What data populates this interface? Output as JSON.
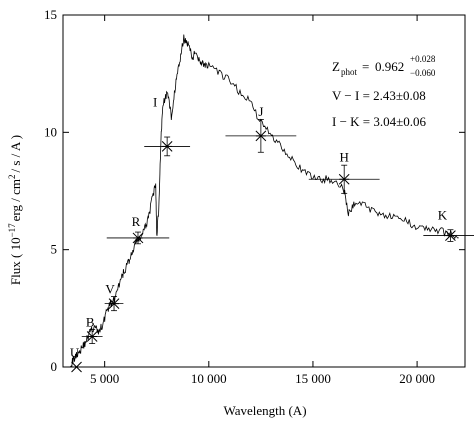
{
  "chart_data": {
    "type": "line",
    "xlabel": "Wavelength (A)",
    "ylabel_parts": {
      "pre": "Flux ( 10",
      "exp": "−17",
      "mid": "erg / cm",
      "exp2": "2",
      "post": "/ s / A )"
    },
    "xlim": [
      3000,
      22300
    ],
    "ylim": [
      0,
      15
    ],
    "x_ticks": [
      {
        "value": 5000,
        "label": "5 000"
      },
      {
        "value": 10000,
        "label": "10 000"
      },
      {
        "value": 15000,
        "label": "15 000"
      },
      {
        "value": 20000,
        "label": "20 000"
      }
    ],
    "y_ticks": [
      {
        "value": 0,
        "label": "0"
      },
      {
        "value": 5,
        "label": "5"
      },
      {
        "value": 10,
        "label": "10"
      },
      {
        "value": 15,
        "label": "15"
      }
    ],
    "grid": false,
    "annotations": {
      "zphot_label": "Z",
      "zphot_sub": "phot",
      "zphot_eq": "=",
      "zphot_value": "0.962",
      "zphot_plus": "+0.028",
      "zphot_minus": "−0.060",
      "color_vi": "V − I = 2.43±0.08",
      "color_ik": "I − K = 3.04±0.06"
    },
    "photometry": [
      {
        "band": "U",
        "x": 3650,
        "y": 0.0,
        "xerr": 500,
        "yerr": 0.0
      },
      {
        "band": "B",
        "x": 4400,
        "y": 1.3,
        "xerr": 500,
        "yerr": 0.3
      },
      {
        "band": "V",
        "x": 5450,
        "y": 2.7,
        "xerr": 450,
        "yerr": 0.3
      },
      {
        "band": "R",
        "x": 6600,
        "y": 5.5,
        "xerr": 1500,
        "yerr": 0.25
      },
      {
        "band": "I",
        "x": 8000,
        "y": 9.4,
        "xerr": 1100,
        "yerr": 0.4
      },
      {
        "band": "J",
        "x": 12500,
        "y": 9.85,
        "xerr": 1700,
        "yerr": 0.7
      },
      {
        "band": "H",
        "x": 16500,
        "y": 8.0,
        "xerr": 1700,
        "yerr": 0.6
      },
      {
        "band": "K",
        "x": 21600,
        "y": 5.6,
        "xerr": 1300,
        "yerr": 0.25
      }
    ],
    "spectrum": {
      "x": [
        3300,
        3500,
        3700,
        3900,
        4100,
        4300,
        4500,
        4700,
        4900,
        5100,
        5300,
        5500,
        5700,
        5900,
        6100,
        6300,
        6500,
        6700,
        6900,
        7100,
        7300,
        7450,
        7500,
        7600,
        7700,
        7800,
        8000,
        8200,
        8400,
        8600,
        8800,
        9000,
        9200,
        9400,
        9600,
        9800,
        10000,
        10500,
        11000,
        11500,
        12000,
        12500,
        13000,
        13500,
        14000,
        14500,
        15000,
        15500,
        16000,
        16500,
        16700,
        17000,
        17500,
        18000,
        18500,
        19000,
        19500,
        20000,
        20500,
        21000,
        21500,
        22000
      ],
      "y": [
        0.0,
        0.3,
        0.6,
        0.8,
        1.1,
        1.5,
        1.7,
        1.5,
        1.8,
        2.4,
        2.7,
        2.9,
        3.5,
        4.0,
        4.4,
        4.8,
        5.3,
        5.5,
        5.8,
        6.4,
        7.2,
        7.8,
        5.6,
        6.8,
        9.7,
        11.2,
        11.7,
        10.7,
        12.0,
        13.0,
        14.0,
        13.8,
        13.2,
        13.4,
        13.0,
        12.9,
        12.8,
        12.5,
        12.2,
        11.7,
        11.3,
        10.4,
        9.9,
        9.4,
        8.9,
        8.3,
        8.1,
        8.0,
        8.0,
        7.5,
        6.5,
        7.0,
        6.9,
        6.6,
        6.5,
        6.3,
        6.2,
        6.0,
        5.9,
        5.8,
        5.7,
        5.5
      ]
    }
  }
}
